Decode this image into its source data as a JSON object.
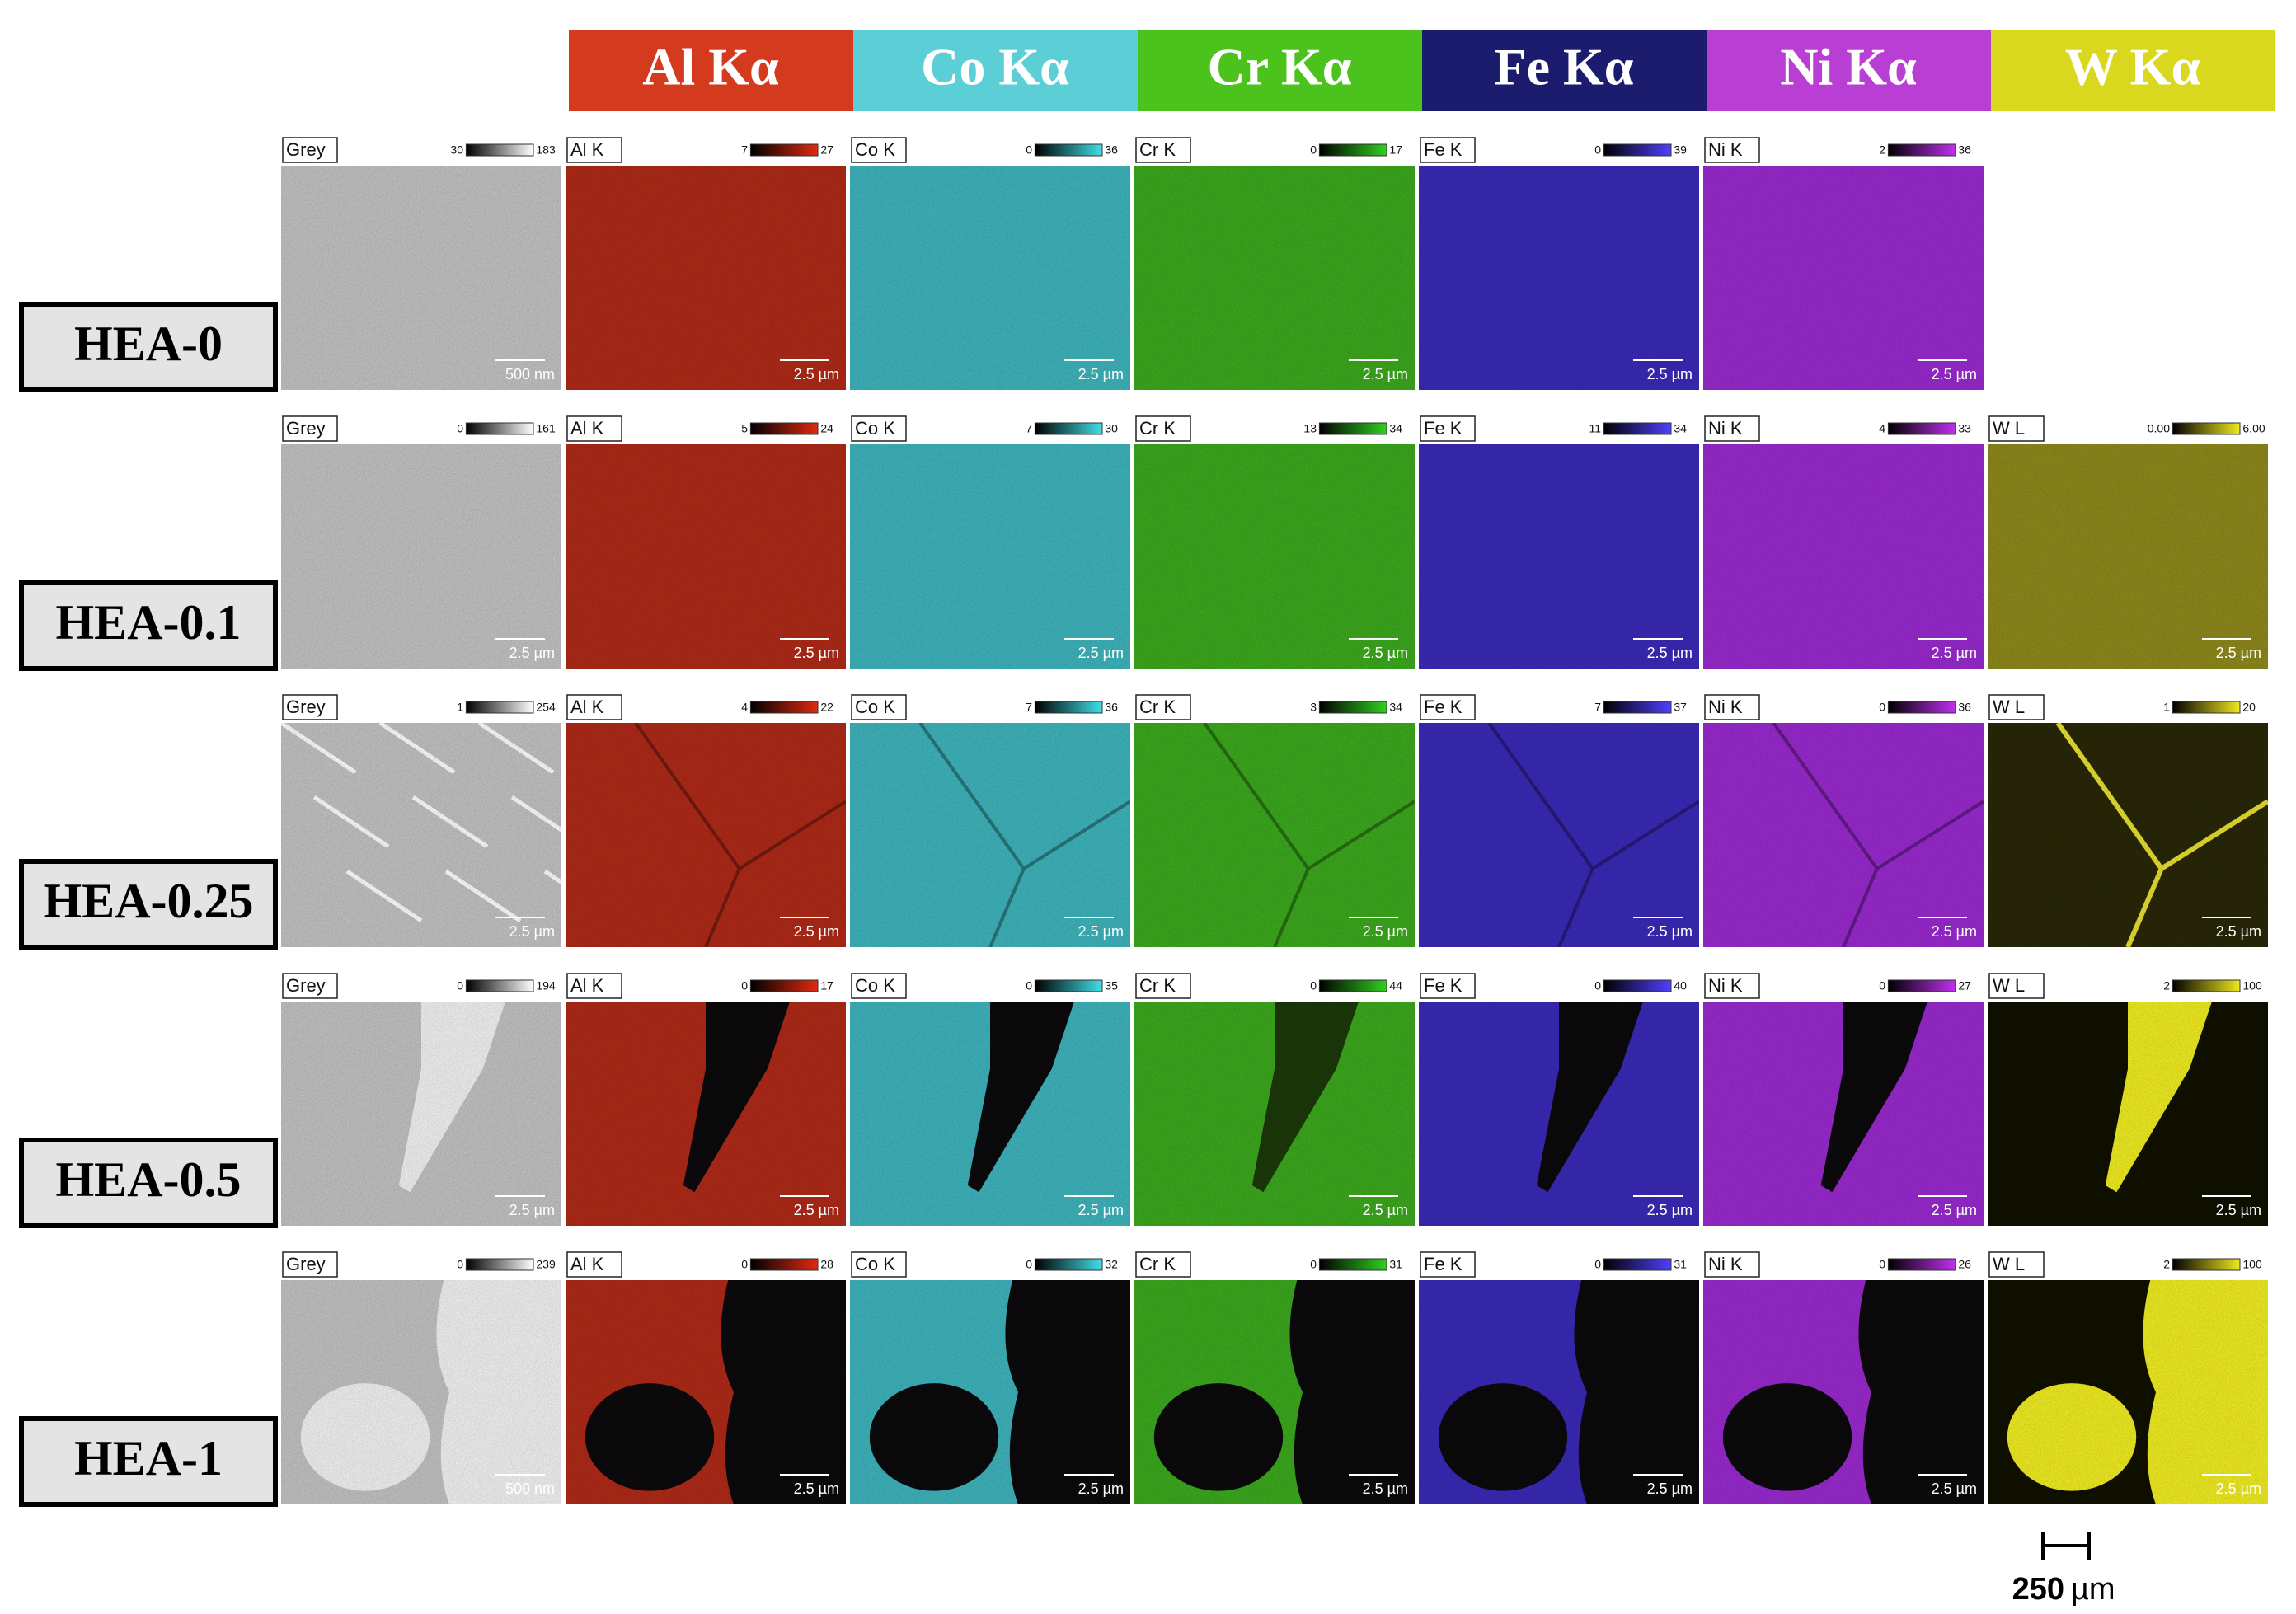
{
  "header": {
    "elements": [
      "Al Kα",
      "Co Kα",
      "Cr Kα",
      "Fe Kα",
      "Ni Kα",
      "W Kα"
    ]
  },
  "samples": [
    {
      "label": "HEA-0",
      "panels": [
        {
          "tag": "Grey",
          "min": "30",
          "max": "183",
          "scale": "500 nm"
        },
        {
          "tag": "Al K",
          "min": "7",
          "max": "27",
          "scale": "2.5 µm"
        },
        {
          "tag": "Co K",
          "min": "0",
          "max": "36",
          "scale": "2.5 µm"
        },
        {
          "tag": "Cr K",
          "min": "0",
          "max": "17",
          "scale": "2.5 µm"
        },
        {
          "tag": "Fe K",
          "min": "0",
          "max": "39",
          "scale": "2.5 µm"
        },
        {
          "tag": "Ni K",
          "min": "2",
          "max": "36",
          "scale": "2.5 µm"
        }
      ]
    },
    {
      "label": "HEA-0.1",
      "panels": [
        {
          "tag": "Grey",
          "min": "0",
          "max": "161",
          "scale": "2.5 µm"
        },
        {
          "tag": "Al K",
          "min": "5",
          "max": "24",
          "scale": "2.5 µm"
        },
        {
          "tag": "Co K",
          "min": "7",
          "max": "30",
          "scale": "2.5 µm"
        },
        {
          "tag": "Cr K",
          "min": "13",
          "max": "34",
          "scale": "2.5 µm"
        },
        {
          "tag": "Fe K",
          "min": "11",
          "max": "34",
          "scale": "2.5 µm"
        },
        {
          "tag": "Ni K",
          "min": "4",
          "max": "33",
          "scale": "2.5 µm"
        },
        {
          "tag": "W L",
          "min": "0.00",
          "max": "6.00",
          "scale": "2.5 µm"
        }
      ]
    },
    {
      "label": "HEA-0.25",
      "panels": [
        {
          "tag": "Grey",
          "min": "1",
          "max": "254",
          "scale": "2.5 µm"
        },
        {
          "tag": "Al K",
          "min": "4",
          "max": "22",
          "scale": "2.5 µm"
        },
        {
          "tag": "Co K",
          "min": "7",
          "max": "36",
          "scale": "2.5 µm"
        },
        {
          "tag": "Cr K",
          "min": "3",
          "max": "34",
          "scale": "2.5 µm"
        },
        {
          "tag": "Fe K",
          "min": "7",
          "max": "37",
          "scale": "2.5 µm"
        },
        {
          "tag": "Ni K",
          "min": "0",
          "max": "36",
          "scale": "2.5 µm"
        },
        {
          "tag": "W L",
          "min": "1",
          "max": "20",
          "scale": "2.5 µm"
        }
      ]
    },
    {
      "label": "HEA-0.5",
      "panels": [
        {
          "tag": "Grey",
          "min": "0",
          "max": "194",
          "scale": "2.5 µm"
        },
        {
          "tag": "Al K",
          "min": "0",
          "max": "17",
          "scale": "2.5 µm"
        },
        {
          "tag": "Co K",
          "min": "0",
          "max": "35",
          "scale": "2.5 µm"
        },
        {
          "tag": "Cr K",
          "min": "0",
          "max": "44",
          "scale": "2.5 µm"
        },
        {
          "tag": "Fe K",
          "min": "0",
          "max": "40",
          "scale": "2.5 µm"
        },
        {
          "tag": "Ni K",
          "min": "0",
          "max": "27",
          "scale": "2.5 µm"
        },
        {
          "tag": "W L",
          "min": "2",
          "max": "100",
          "scale": "2.5 µm"
        }
      ]
    },
    {
      "label": "HEA-1",
      "panels": [
        {
          "tag": "Grey",
          "min": "0",
          "max": "239",
          "scale": "500 nm"
        },
        {
          "tag": "Al K",
          "min": "0",
          "max": "28",
          "scale": "2.5 µm"
        },
        {
          "tag": "Co K",
          "min": "0",
          "max": "32",
          "scale": "2.5 µm"
        },
        {
          "tag": "Cr K",
          "min": "0",
          "max": "31",
          "scale": "2.5 µm"
        },
        {
          "tag": "Fe K",
          "min": "0",
          "max": "31",
          "scale": "2.5 µm"
        },
        {
          "tag": "Ni K",
          "min": "0",
          "max": "26",
          "scale": "2.5 µm"
        },
        {
          "tag": "W L",
          "min": "2",
          "max": "100",
          "scale": "2.5 µm"
        }
      ]
    }
  ],
  "scale_bar": {
    "value": "250",
    "unit": "µm"
  }
}
